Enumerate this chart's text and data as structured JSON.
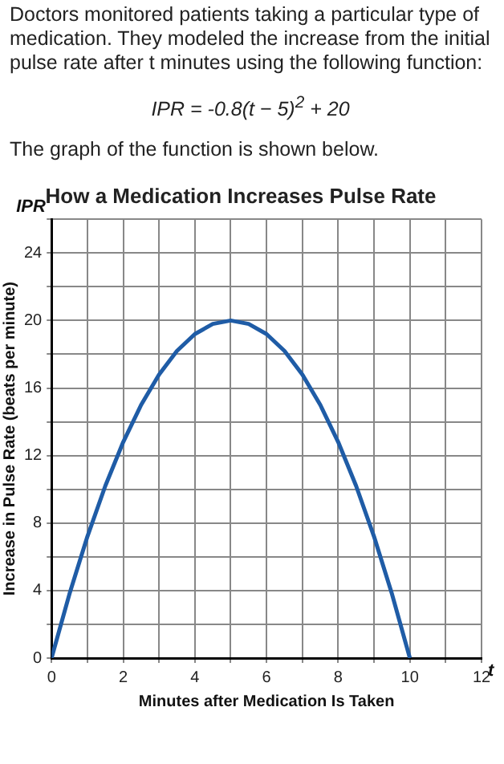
{
  "chart_data": {
    "type": "line",
    "title": "How a Medication Increases Pulse Rate",
    "xlabel": "Minutes after Medication Is Taken",
    "ylabel": "Increase in Pulse Rate (beats per minute)",
    "annotations": [
      "Doctors monitored patients taking a particular type of medication.  They modeled the increase from the initial pulse rate after t minutes using the following function:",
      "IPR = -0.8(t − 5)$^{2}$ + 20",
      "The graph of the function is shown below.",
      "IPR",
      "t"
    ],
    "series": [
      {
        "color": "#1f5ca6",
        "x": [
          0,
          0.5,
          1,
          1.5,
          2,
          2.5,
          3,
          3.5,
          4,
          4.5,
          5,
          5.5,
          6,
          6.5,
          7,
          7.5,
          8,
          8.5,
          9,
          9.5,
          10
        ],
        "values": [
          0,
          3.8,
          7.2,
          10.2,
          12.8,
          15,
          16.8,
          18.2,
          19.2,
          19.8,
          20,
          19.8,
          19.2,
          18.2,
          16.8,
          15,
          12.8,
          10.2,
          7.2,
          3.8,
          0
        ]
      }
    ],
    "xlim": [
      0,
      12
    ],
    "ylim": [
      0,
      26
    ],
    "xticks": [
      0,
      {
        "value": 1,
        "label": null
      },
      2,
      {
        "value": 3,
        "label": null
      },
      4,
      {
        "value": 5,
        "label": null
      },
      6,
      {
        "value": 7,
        "label": null
      },
      8,
      {
        "value": 9,
        "label": null
      },
      10,
      {
        "value": 11,
        "label": null
      },
      12
    ],
    "yticks": [
      0,
      {
        "value": 2,
        "label": null
      },
      4,
      {
        "value": 6,
        "label": null
      },
      8,
      {
        "value": 10,
        "label": null
      },
      12,
      {
        "value": 14,
        "label": null
      },
      16,
      {
        "value": 18,
        "label": null
      },
      20,
      {
        "value": 22,
        "label": null
      },
      24,
      {
        "value": 26,
        "label": null
      }
    ],
    "grid": true,
    "marker": "none",
    "line_style": "solid"
  }
}
